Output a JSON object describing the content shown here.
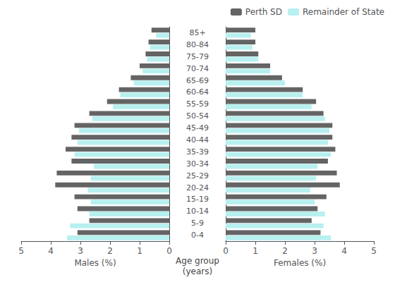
{
  "chart_data": [
    {
      "type": "bar",
      "orientation": "horizontal",
      "xlabel": "Males (%)",
      "ylabel": "Age group\n(years)",
      "categories": [
        "85+",
        "80-84",
        "75-79",
        "70-74",
        "65-69",
        "60-64",
        "55-59",
        "50-54",
        "45-49",
        "40-44",
        "35-39",
        "30-34",
        "25-29",
        "20-24",
        "15-19",
        "10-14",
        "5-9",
        "0-4"
      ],
      "xlim": [
        5,
        0
      ],
      "xticks": [
        0,
        1,
        2,
        3,
        4,
        5
      ],
      "series": [
        {
          "name": "Perth SD",
          "color": "#646464",
          "values": [
            0.6,
            0.7,
            0.8,
            1.0,
            1.3,
            1.7,
            2.1,
            2.7,
            3.2,
            3.3,
            3.5,
            3.3,
            3.8,
            3.85,
            3.2,
            3.1,
            2.7,
            3.1
          ]
        },
        {
          "name": "Remainder of State",
          "color": "#b8f0f0",
          "values": [
            0.45,
            0.65,
            0.75,
            0.9,
            1.2,
            1.65,
            1.9,
            2.6,
            3.05,
            3.1,
            3.2,
            2.55,
            2.65,
            2.75,
            2.65,
            2.7,
            3.35,
            3.45
          ]
        }
      ]
    },
    {
      "type": "bar",
      "orientation": "horizontal",
      "xlabel": "Females (%)",
      "categories": [
        "85+",
        "80-84",
        "75-79",
        "70-74",
        "65-69",
        "60-64",
        "55-59",
        "50-54",
        "45-49",
        "40-44",
        "35-39",
        "30-34",
        "25-29",
        "20-24",
        "15-19",
        "10-14",
        "5-9",
        "0-4"
      ],
      "xlim": [
        0,
        5
      ],
      "xticks": [
        0,
        1,
        2,
        3,
        4,
        5
      ],
      "tick_labels": "x",
      "legend": "upper right",
      "series": [
        {
          "name": "Perth SD",
          "color": "#646464",
          "values": [
            1.0,
            1.0,
            1.1,
            1.5,
            1.9,
            2.6,
            3.05,
            3.3,
            3.6,
            3.6,
            3.7,
            3.45,
            3.75,
            3.85,
            3.4,
            3.1,
            2.9,
            3.2
          ]
        },
        {
          "name": "Remainder of State",
          "color": "#b8f0f0",
          "values": [
            0.85,
            0.9,
            1.1,
            1.5,
            2.0,
            2.6,
            2.9,
            3.35,
            3.5,
            3.45,
            3.55,
            3.1,
            3.05,
            2.85,
            3.0,
            3.35,
            3.3,
            3.55
          ]
        }
      ]
    }
  ]
}
